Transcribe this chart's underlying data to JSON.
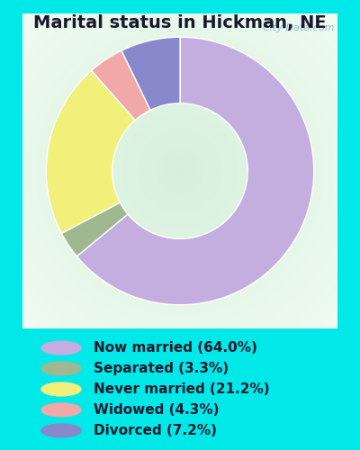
{
  "title": "Marital status in Hickman, NE",
  "categories": [
    "Now married",
    "Separated",
    "Never married",
    "Widowed",
    "Divorced"
  ],
  "values": [
    64.0,
    3.3,
    21.2,
    4.3,
    7.2
  ],
  "colors": [
    "#c4aee0",
    "#a0b890",
    "#f0f07a",
    "#f0a8a8",
    "#8888cc"
  ],
  "legend_labels": [
    "Now married (64.0%)",
    "Separated (3.3%)",
    "Never married (21.2%)",
    "Widowed (4.3%)",
    "Divorced (7.2%)"
  ],
  "bg_outer": "#00e8e8",
  "watermark": "  City-Data.com",
  "title_fontsize": 14,
  "legend_fontsize": 11,
  "donut_width": 0.42,
  "start_angle": 90
}
